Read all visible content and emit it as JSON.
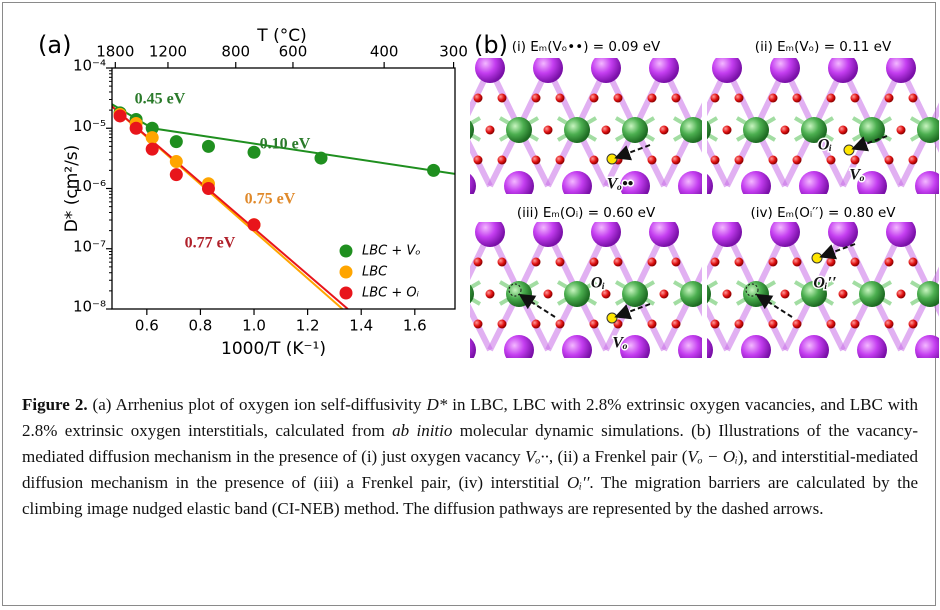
{
  "panel_a": {
    "label": "(a)",
    "chart_data": {
      "type": "scatter",
      "x2label": "T (°C)",
      "xlabel": "1000/T (K⁻¹)",
      "ylabel": "D* (cm²/s)",
      "xlim": [
        0.47,
        1.75
      ],
      "xticks": [
        0.6,
        0.8,
        {
          "value": 1,
          "label": "1.0"
        },
        1.2,
        1.4,
        1.6
      ],
      "x2ticks": [
        1800,
        1200,
        800,
        600,
        400,
        300
      ],
      "ylim": [
        1e-08,
        0.0001
      ],
      "log_y": true,
      "yticks": [
        {
          "value": 1e-08,
          "label": "10⁻⁸"
        },
        {
          "value": 1e-07,
          "label": "10⁻⁷"
        },
        {
          "value": 1e-06,
          "label": "10⁻⁶"
        },
        {
          "value": 1e-05,
          "label": "10⁻⁵"
        },
        {
          "value": 0.0001,
          "label": "10⁻⁴"
        }
      ],
      "legend": "lower right",
      "series": [
        {
          "name": "LBC + Vₒ",
          "color": "#1f8f1f",
          "x": [
            0.5,
            0.56,
            0.62,
            0.71,
            0.83,
            1.0,
            1.25,
            1.67
          ],
          "values": [
            1.8e-05,
            1.4e-05,
            1e-05,
            6e-06,
            5e-06,
            4e-06,
            3.2e-06,
            2e-06
          ]
        },
        {
          "name": "LBC",
          "color": "#ffa500",
          "x": [
            0.5,
            0.56,
            0.62,
            0.71,
            0.83,
            1.0
          ],
          "values": [
            1.7e-05,
            1.2e-05,
            7e-06,
            2.8e-06,
            1.2e-06,
            2.5e-07
          ]
        },
        {
          "name": "LBC + Oᵢ",
          "color": "#e8151b",
          "x": [
            0.5,
            0.56,
            0.62,
            0.71,
            0.83,
            1.0
          ],
          "values": [
            1.6e-05,
            1e-05,
            4.5e-06,
            1.7e-06,
            1e-06,
            2.5e-07
          ]
        }
      ],
      "fits": [
        {
          "color": "#1f8f1f",
          "x": [
            0.47,
            0.62,
            1.75
          ],
          "values": [
            2.5e-05,
            1e-05,
            1.75e-06
          ]
        },
        {
          "color": "#ffa500",
          "x": [
            0.47,
            1.33
          ],
          "values": [
            2.3e-05,
            1e-08
          ]
        },
        {
          "color": "#e8151b",
          "x": [
            0.47,
            1.35
          ],
          "values": [
            2.3e-05,
            1e-08
          ]
        }
      ],
      "annotations": [
        {
          "text": "0.45 eV",
          "color": "#2a7a2a"
        },
        {
          "text": "0.10 eV",
          "color": "#2a7a2a"
        },
        {
          "text": "0.75 eV",
          "color": "#e0892a"
        },
        {
          "text": "0.77 eV",
          "color": "#b0202a"
        }
      ]
    }
  },
  "panel_b": {
    "label": "(b)",
    "tiles": [
      {
        "title": "(i) Eₘ(Vₒ••) = 0.09 eV",
        "labels": [
          "Vₒ••"
        ]
      },
      {
        "title": "(ii) Eₘ(Vₒ) = 0.11 eV",
        "labels": [
          "Oᵢ",
          "Vₒ"
        ]
      },
      {
        "title": "(iii) Eₘ(Oᵢ) = 0.60 eV",
        "labels": [
          "Oᵢ",
          "Vₒ"
        ]
      },
      {
        "title": "(iv) Eₘ(Oᵢ′′) = 0.80 eV",
        "labels": [
          "Oᵢ′′"
        ]
      }
    ]
  },
  "caption": [
    {
      "text": "Figure 2.",
      "style": "bold"
    },
    {
      "text": " (a) Arrhenius plot of oxygen ion self-diffusivity "
    },
    {
      "text": "D*",
      "style": "italic"
    },
    {
      "text": " in LBC, LBC with 2.8% extrinsic oxygen vacancies, and LBC with 2.8% extrinsic oxygen interstitials, calculated from "
    },
    {
      "text": "ab initio",
      "style": "italic"
    },
    {
      "text": " molecular dynamic simulations. (b) Illustrations of the vacancy-mediated diffusion mechanism in the presence of (i) just oxygen vacancy "
    },
    {
      "text": "Vₒ··",
      "style": "italic"
    },
    {
      "text": ", (ii) a Frenkel pair ("
    },
    {
      "text": "Vₒ − Oᵢ",
      "style": "italic"
    },
    {
      "text": "), and interstitial-mediated diffusion mechanism in the presence of (iii) a Frenkel pair, (iv) interstitial "
    },
    {
      "text": "Oᵢ′′",
      "style": "italic"
    },
    {
      "text": ". The migration barriers are calculated by the climbing image nudged elastic band (CI-NEB) method. The diffusion pathways are represented by the dashed arrows."
    }
  ]
}
